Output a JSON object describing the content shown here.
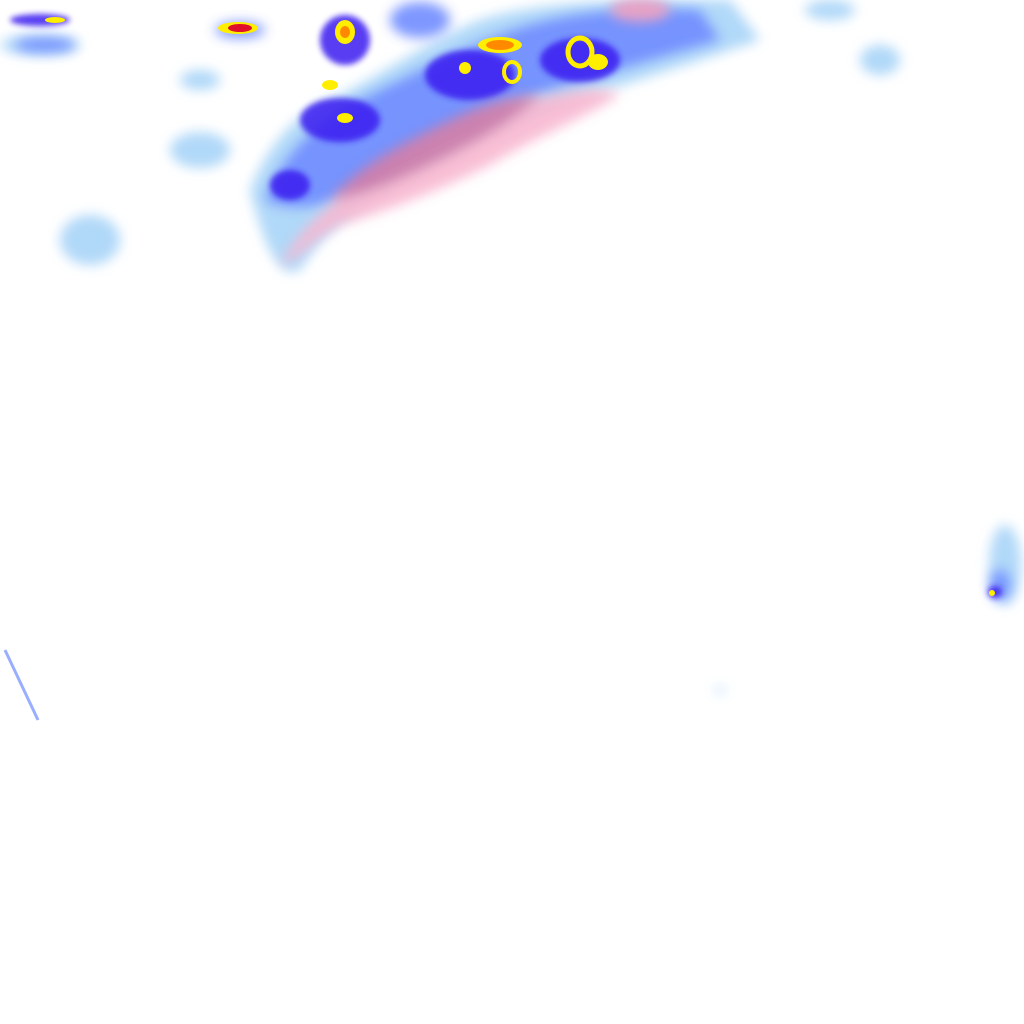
{
  "map": {
    "type": "weather-radar-tile",
    "colors": {
      "background": "#ffffff",
      "light_rain": "#a8d4f8",
      "moderate_rain": "#6f8cff",
      "heavy_rain": "#3a1cf0",
      "very_heavy": "#ffee00",
      "intense": "#ff8a00",
      "extreme": "#e0102a",
      "mixed_snow": "#f8b8d0",
      "snow": "#d07aa8"
    }
  }
}
